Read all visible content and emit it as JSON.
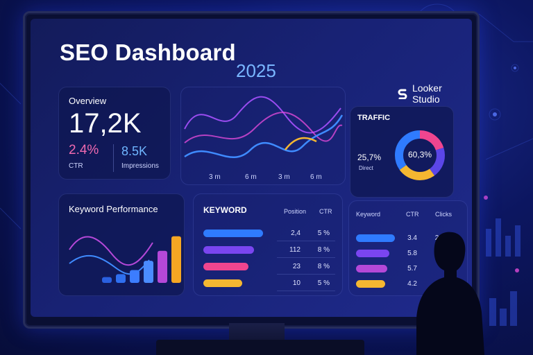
{
  "dashboard": {
    "title": "SEO Dashboard",
    "year": "2025",
    "brand": "Looker Studio"
  },
  "overview": {
    "heading": "Overview",
    "big_value": "17,2K",
    "ctr_value": "2.4%",
    "ctr_label": "CTR",
    "impressions_value": "8.5K",
    "impressions_label": "Impressions"
  },
  "trend_chart": {
    "x_labels": [
      "3 m",
      "6 m",
      "3 m",
      "6 m"
    ]
  },
  "traffic": {
    "heading": "TRAFFIC",
    "direct_value": "25,7%",
    "direct_label": "Direct",
    "center_value": "60,3%",
    "donut": [
      {
        "value": 20,
        "color": "#f0458f"
      },
      {
        "value": 20,
        "color": "#5b46e8"
      },
      {
        "value": 25,
        "color": "#f5b731"
      },
      {
        "value": 35,
        "color": "#2f7bff"
      }
    ]
  },
  "keyword_performance": {
    "heading": "Keyword Performance",
    "bars": [
      {
        "value": 10,
        "color": "#2a60e0"
      },
      {
        "value": 15,
        "color": "#2f6ff0"
      },
      {
        "value": 22,
        "color": "#3c7dff"
      },
      {
        "value": 38,
        "color": "#4a8cff"
      },
      {
        "value": 55,
        "color": "#b548d8"
      },
      {
        "value": 80,
        "color": "#f5a623"
      },
      {
        "value": 100,
        "color": "#f04a5a"
      }
    ]
  },
  "keyword_table": {
    "heading": "KEYWORD",
    "col_position": "Position",
    "col_ctr": "CTR",
    "rows": [
      {
        "position": "2,4",
        "ctr": "5 %",
        "fill": 1.0,
        "color": "#2f7bff"
      },
      {
        "position": "112",
        "ctr": "8 %",
        "fill": 0.85,
        "color": "#7a45f0"
      },
      {
        "position": "23",
        "ctr": "8 %",
        "fill": 0.75,
        "color": "#f0458f"
      },
      {
        "position": "10",
        "ctr": "5 %",
        "fill": 0.65,
        "color": "#f5b731"
      }
    ]
  },
  "clicks_table": {
    "col_keyword": "Keyword",
    "col_ctr": "CTR",
    "col_clicks": "Clicks",
    "rows": [
      {
        "ctr": "3.4",
        "clicks": "2.110",
        "fill": 1.0,
        "color": "#2f7bff"
      },
      {
        "ctr": "5.8",
        "clicks": "",
        "fill": 0.85,
        "color": "#7a45f0"
      },
      {
        "ctr": "5.7",
        "clicks": "",
        "fill": 0.8,
        "color": "#b548d8"
      },
      {
        "ctr": "4.2",
        "clicks": "",
        "fill": 0.75,
        "color": "#f5b731"
      }
    ]
  }
}
